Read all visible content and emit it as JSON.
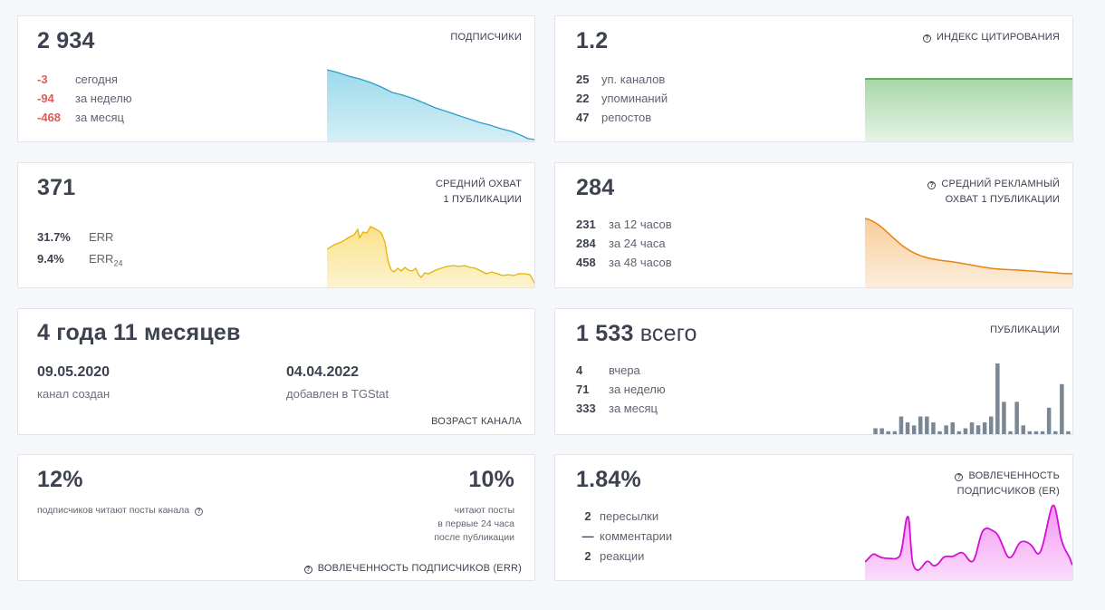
{
  "subscribers": {
    "value": "2 934",
    "caption": "ПОДПИСЧИКИ",
    "stats": [
      {
        "value": "-3",
        "label": "сегодня"
      },
      {
        "value": "-94",
        "label": "за неделю"
      },
      {
        "value": "-468",
        "label": "за месяц"
      }
    ],
    "color": "#5bc0de"
  },
  "citation": {
    "value": "1.2",
    "caption": "ИНДЕКС ЦИТИРОВАНИЯ",
    "stats": [
      {
        "value": "25",
        "label": "уп. каналов"
      },
      {
        "value": "22",
        "label": "упоминаний"
      },
      {
        "value": "47",
        "label": "репостов"
      }
    ],
    "color": "#5cb85c"
  },
  "reach": {
    "value": "371",
    "caption_line1": "СРЕДНИЙ ОХВАТ",
    "caption_line2": "1 ПУБЛИКАЦИИ",
    "stats": [
      {
        "value": "31.7%",
        "label": "ERR",
        "sub": ""
      },
      {
        "value": "9.4%",
        "label": "ERR",
        "sub": "24"
      }
    ],
    "color": "#f5c518"
  },
  "ad_reach": {
    "value": "284",
    "caption_line1": "СРЕДНИЙ РЕКЛАМНЫЙ",
    "caption_line2": "ОХВАТ 1 ПУБЛИКАЦИИ",
    "stats": [
      {
        "value": "231",
        "label": "за 12 часов"
      },
      {
        "value": "284",
        "label": "за 24 часа"
      },
      {
        "value": "458",
        "label": "за 48 часов"
      }
    ],
    "color": "#f0901e"
  },
  "age": {
    "value": "4 года 11 месяцев",
    "created_date": "09.05.2020",
    "created_label": "канал создан",
    "added_date": "04.04.2022",
    "added_label": "добавлен в TGStat",
    "caption": "ВОЗРАСТ КАНАЛА"
  },
  "publications": {
    "value": "1 533",
    "suffix": "всего",
    "caption": "ПУБЛИКАЦИИ",
    "stats": [
      {
        "value": "4",
        "label": "вчера"
      },
      {
        "value": "71",
        "label": "за неделю"
      },
      {
        "value": "333",
        "label": "за месяц"
      }
    ],
    "bars": [
      2,
      2,
      1,
      1,
      6,
      4,
      3,
      6,
      6,
      4,
      1,
      3,
      4,
      1,
      2,
      4,
      3,
      4,
      6,
      24,
      11,
      1,
      11,
      3,
      1,
      1,
      1,
      9,
      1,
      17,
      1
    ],
    "color": "#7a8794"
  },
  "err": {
    "left_value": "12%",
    "left_label": "подписчиков читают посты канала",
    "right_value": "10%",
    "right_line1": "читают посты",
    "right_line2": "в первые 24 часа",
    "right_line3": "после публикации",
    "caption": "ВОВЛЕЧЕННОСТЬ ПОДПИСЧИКОВ (ERR)"
  },
  "er": {
    "value": "1.84%",
    "caption_line1": "ВОВЛЕЧЕННОСТЬ",
    "caption_line2": "ПОДПИСЧИКОВ (ER)",
    "stats": [
      {
        "value": "2",
        "label": "пересылки"
      },
      {
        "value": "—",
        "label": "комментарии"
      },
      {
        "value": "2",
        "label": "реакции"
      }
    ],
    "color": "#e619e6"
  }
}
